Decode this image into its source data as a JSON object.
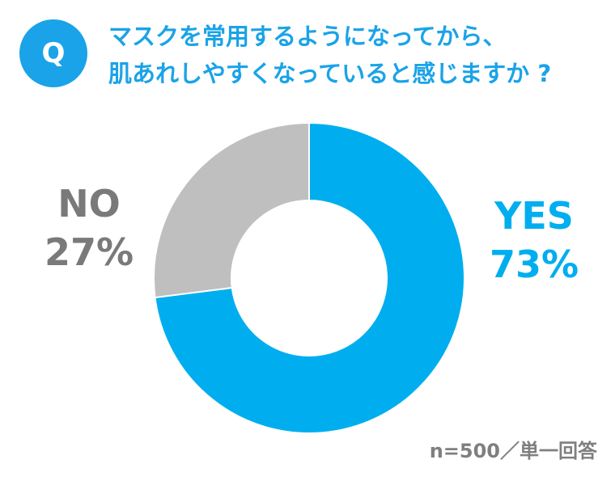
{
  "badge": {
    "letter": "Q"
  },
  "question": {
    "line1": "マスクを常用するようになってから、",
    "line2": "肌あれしやすくなっていると感じますか ?"
  },
  "note": "n=500／単一回答",
  "colors": {
    "accent": "#1aa3e8",
    "yes": "#00aeef",
    "no": "#bfbfbf",
    "no_text": "#7a7a7a"
  },
  "chart_data": {
    "type": "pie",
    "donut": true,
    "categories": [
      "YES",
      "NO"
    ],
    "values": [
      73,
      27
    ],
    "value_labels": [
      "73%",
      "27%"
    ],
    "colors": [
      "#00aeef",
      "#bfbfbf"
    ],
    "title": "",
    "legend": "none"
  }
}
